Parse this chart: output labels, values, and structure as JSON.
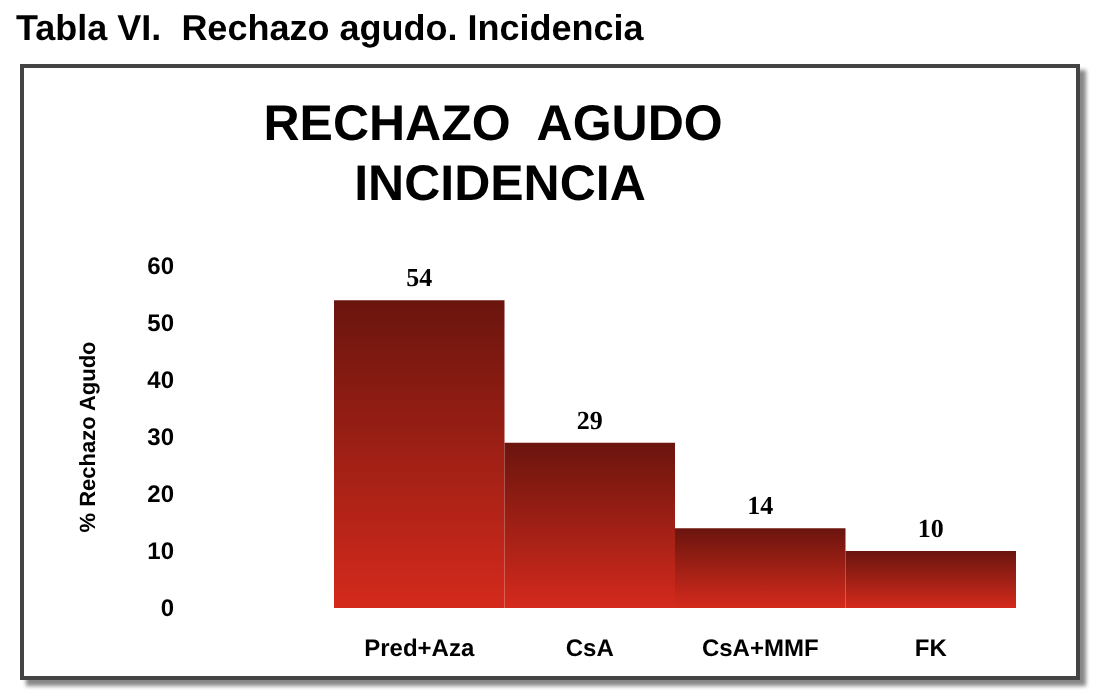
{
  "chart_data": {
    "type": "bar",
    "title": "Tabla VI.  Rechazo agudo. Incidencia",
    "subtitle": "RECHAZO  AGUDO INCIDENCIA",
    "ylabel": "% Rechazo Agudo",
    "categories": [
      "Pred+Aza",
      "CsA",
      "CsA+MMF",
      "FK"
    ],
    "values": [
      54,
      29,
      14,
      10
    ],
    "color": "#d42a1c",
    "ylim": [
      0,
      60
    ],
    "yticks": [
      0,
      10,
      20,
      30,
      40,
      50,
      60
    ],
    "data_labels": true,
    "grid": false
  }
}
